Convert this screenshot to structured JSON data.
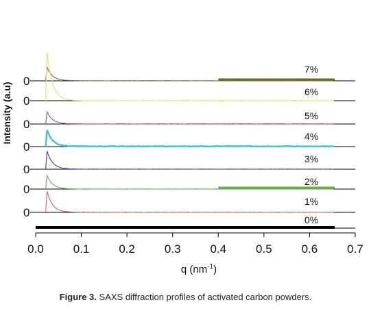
{
  "chart_data": {
    "type": "line",
    "title": "",
    "ylabel": "Intensity (a.u)",
    "xlabel_main": "q (nm",
    "xlabel_sup": "-1",
    "xlabel_end": ")",
    "xlim": [
      0,
      0.7
    ],
    "x_ticks": [
      "0.0",
      "0.1",
      "0.2",
      "0.3",
      "0.4",
      "0.5",
      "0.6",
      "0.7"
    ],
    "baseline_tick": "0",
    "grid": false,
    "series": [
      {
        "name": "7%",
        "color": "#6b6b2a",
        "peak_q": 0.025,
        "peak_height": 0.9,
        "noise": 0.04,
        "end_q": 0.655
      },
      {
        "name": "6%",
        "color": "#e6e06a",
        "peak_q": 0.025,
        "peak_height": 3.2,
        "noise": 0.03,
        "end_q": 0.655
      },
      {
        "name": "5%",
        "color": "#b05070",
        "peak_q": 0.025,
        "peak_height": 0.8,
        "noise": 0.05,
        "end_q": 0.655
      },
      {
        "name": "4%",
        "color": "#4ec0cc",
        "peak_q": 0.025,
        "peak_height": 1.1,
        "noise": 0.12,
        "end_q": 0.655
      },
      {
        "name": "3%",
        "color": "#3a3a9a",
        "peak_q": 0.025,
        "peak_height": 1.2,
        "noise": 0.04,
        "end_q": 0.655
      },
      {
        "name": "2%",
        "color": "#6aa84f",
        "peak_q": 0.025,
        "peak_height": 0.9,
        "noise": 0.03,
        "end_q": 0.655
      },
      {
        "name": "1%",
        "color": "#e06060",
        "peak_q": 0.025,
        "peak_height": 1.4,
        "noise": 0.04,
        "end_q": 0.655
      },
      {
        "name": "0%",
        "color": "#000000",
        "peak_q": 0.025,
        "peak_height": 0.0,
        "noise": 0.0,
        "end_q": 0.655
      }
    ]
  },
  "caption": {
    "figure": "Figure 3.",
    "text": " SAXS diffraction profiles of activated carbon powders."
  }
}
